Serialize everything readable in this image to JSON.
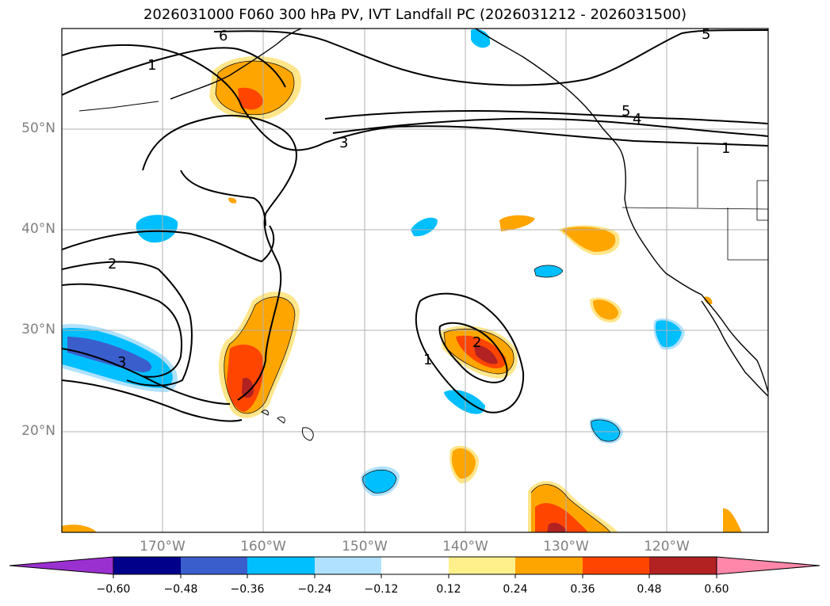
{
  "title": "2026031000 F060 300 hPa PV, IVT Landfall PC (2026031212 - 2026031500)",
  "map": {
    "lon_range": [
      -180,
      -110
    ],
    "lat_range": [
      10,
      60
    ],
    "lat_ticks": [
      {
        "value": 50,
        "label": "50°N"
      },
      {
        "value": 40,
        "label": "40°N"
      },
      {
        "value": 30,
        "label": "30°N"
      },
      {
        "value": 20,
        "label": "20°N"
      }
    ],
    "lon_ticks": [
      {
        "value": -170,
        "label": "170°W"
      },
      {
        "value": -160,
        "label": "160°W"
      },
      {
        "value": -150,
        "label": "150°W"
      },
      {
        "value": -140,
        "label": "140°W"
      },
      {
        "value": -130,
        "label": "130°W"
      },
      {
        "value": -120,
        "label": "120°W"
      }
    ],
    "pv_contour_labels": [
      "6",
      "1",
      "3",
      "2",
      "3",
      "1",
      "2",
      "5",
      "4",
      "5",
      "1"
    ]
  },
  "colorbar": {
    "levels": [
      "−0.60",
      "−0.48",
      "−0.36",
      "−0.24",
      "−0.12",
      "0.12",
      "0.24",
      "0.36",
      "0.48",
      "0.60"
    ],
    "colors": [
      "#9b30d0",
      "#00008b",
      "#3a5fcd",
      "#00bfff",
      "#b0e2ff",
      "#ffffff",
      "#fff08c",
      "#ffa500",
      "#ff4500",
      "#b22222",
      "#ff88aa"
    ]
  }
}
